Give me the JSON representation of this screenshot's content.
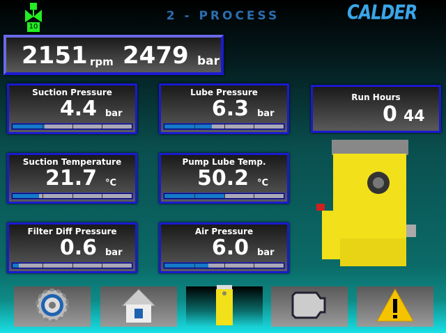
{
  "header": {
    "title": "2 - PROCESS",
    "logo": "CALDER",
    "valve_icon": "valve-icon",
    "valve_number": "10"
  },
  "main": {
    "speed": "2151",
    "speed_unit": "rpm",
    "pressure": "2479",
    "pressure_unit": "bar"
  },
  "gauges": [
    {
      "label": "Suction Pressure",
      "value": "4.4",
      "unit": "bar",
      "fill": 0.27
    },
    {
      "label": "Lube Pressure",
      "value": "6.3",
      "unit": "bar",
      "fill": 0.4
    },
    {
      "label": "Suction Temperature",
      "value": "21.7",
      "unit": "°C",
      "fill": 0.22
    },
    {
      "label": "Pump Lube Temp.",
      "value": "50.2",
      "unit": "°C",
      "fill": 0.5
    },
    {
      "label": "Filter Diff Pressure",
      "value": "0.6",
      "unit": "bar",
      "fill": 0.05
    },
    {
      "label": "Air Pressure",
      "value": "6.0",
      "unit": "bar",
      "fill": 0.37
    }
  ],
  "run_hours": {
    "label": "Run Hours",
    "hours": "0",
    "minutes": "44"
  },
  "nav": [
    {
      "icon": "gear-icon",
      "label": "settings"
    },
    {
      "icon": "home-icon",
      "label": "home"
    },
    {
      "icon": "pump-icon",
      "label": "process",
      "active": true
    },
    {
      "icon": "engine-icon",
      "label": "engine"
    },
    {
      "icon": "warning-icon",
      "label": "alarms"
    }
  ],
  "colors": {
    "accent": "#1578c8",
    "panel_border": "#1a1ad0",
    "pump": "#f2e01a"
  }
}
